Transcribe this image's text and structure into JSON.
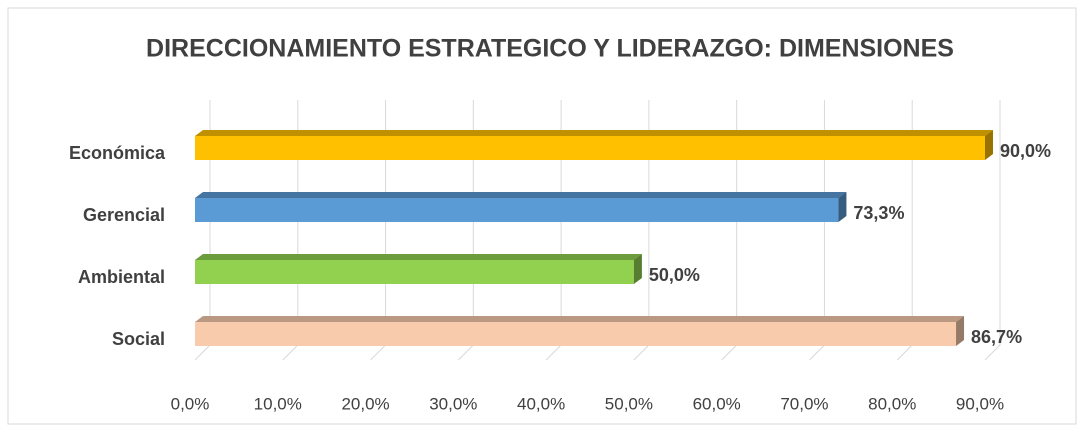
{
  "chart_data": {
    "type": "bar",
    "orientation": "horizontal",
    "title": "DIRECCIONAMIENTO ESTRATEGICO Y LIDERAZGO: DIMENSIONES",
    "categories": [
      "Económica",
      "Gerencial",
      "Ambiental",
      "Social"
    ],
    "values": [
      90.0,
      73.3,
      50.0,
      86.7
    ],
    "value_labels": [
      "90,0%",
      "73,3%",
      "50,0%",
      "86,7%"
    ],
    "colors": [
      "#ffc000",
      "#5b9bd5",
      "#92d050",
      "#f8cbad"
    ],
    "xlim": [
      0,
      90
    ],
    "xticks": [
      {
        "value": 0,
        "label": "0,0%"
      },
      {
        "value": 10,
        "label": "10,0%"
      },
      {
        "value": 20,
        "label": "20,0%"
      },
      {
        "value": 30,
        "label": "30,0%"
      },
      {
        "value": 40,
        "label": "40,0%"
      },
      {
        "value": 50,
        "label": "50,0%"
      },
      {
        "value": 60,
        "label": "60,0%"
      },
      {
        "value": 70,
        "label": "70,0%"
      },
      {
        "value": 80,
        "label": "80,0%"
      },
      {
        "value": 90,
        "label": "90,0%"
      }
    ],
    "grid": true
  }
}
